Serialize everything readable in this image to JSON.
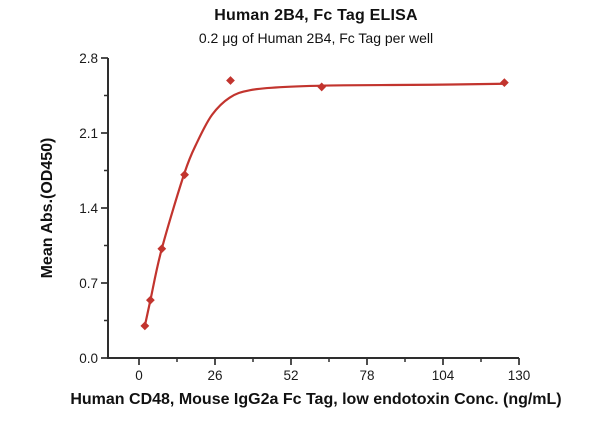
{
  "chart_data": {
    "type": "scatter",
    "title": "Human 2B4, Fc Tag ELISA",
    "subtitle": "0.2 μg of Human 2B4, Fc Tag per well",
    "xlabel": "Human CD48, Mouse IgG2a Fc Tag, low endotoxin Conc. (ng/mL)",
    "ylabel": "Mean Abs.(OD450)",
    "xlim": [
      0,
      130
    ],
    "ylim": [
      0.0,
      2.8
    ],
    "x_major_ticks": [
      0,
      26,
      52,
      78,
      104,
      130
    ],
    "x_minor_ticks": [
      13,
      39,
      65,
      91,
      117
    ],
    "y_major_ticks": [
      0.0,
      0.7,
      1.4,
      2.1,
      2.8
    ],
    "y_minor_ticks": [
      0.35,
      1.05,
      1.75,
      2.45
    ],
    "grid": false,
    "legend": false,
    "series": [
      {
        "marker": "diamond",
        "color": "#c2342e",
        "points": [
          {
            "x": 2.0,
            "y": 0.3
          },
          {
            "x": 3.9,
            "y": 0.54
          },
          {
            "x": 7.8,
            "y": 1.02
          },
          {
            "x": 15.6,
            "y": 1.71
          },
          {
            "x": 31.3,
            "y": 2.59
          },
          {
            "x": 62.5,
            "y": 2.53
          },
          {
            "x": 125,
            "y": 2.57
          }
        ]
      }
    ],
    "fit_curve": [
      [
        2.0,
        0.3
      ],
      [
        3.9,
        0.54
      ],
      [
        7.8,
        1.02
      ],
      [
        15.6,
        1.73
      ],
      [
        20,
        2.02
      ],
      [
        25,
        2.27
      ],
      [
        31,
        2.43
      ],
      [
        38,
        2.5
      ],
      [
        50,
        2.53
      ],
      [
        70,
        2.545
      ],
      [
        100,
        2.55
      ],
      [
        125,
        2.56
      ]
    ],
    "colors": {
      "series": "#c2342e",
      "axis": "#2e2e2e",
      "text": "#1a1a1a",
      "background": "#ffffff"
    }
  }
}
